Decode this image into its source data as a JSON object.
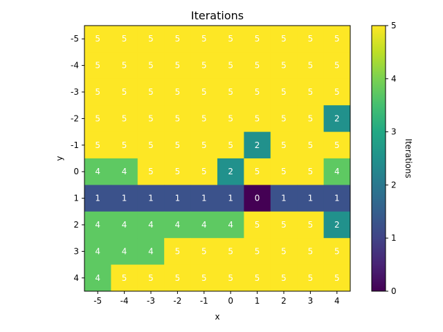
{
  "chart_data": {
    "type": "heatmap",
    "title": "Iterations",
    "xlabel": "x",
    "ylabel": "y",
    "x_categories": [
      "-5",
      "-4",
      "-3",
      "-2",
      "-1",
      "0",
      "1",
      "2",
      "3",
      "4"
    ],
    "y_categories": [
      "-5",
      "-4",
      "-3",
      "-2",
      "-1",
      "0",
      "1",
      "2",
      "3",
      "4"
    ],
    "values": [
      [
        5,
        5,
        5,
        5,
        5,
        5,
        5,
        5,
        5,
        5
      ],
      [
        5,
        5,
        5,
        5,
        5,
        5,
        5,
        5,
        5,
        5
      ],
      [
        5,
        5,
        5,
        5,
        5,
        5,
        5,
        5,
        5,
        5
      ],
      [
        5,
        5,
        5,
        5,
        5,
        5,
        5,
        5,
        5,
        2
      ],
      [
        5,
        5,
        5,
        5,
        5,
        5,
        2,
        5,
        5,
        5
      ],
      [
        4,
        4,
        5,
        5,
        5,
        2,
        5,
        5,
        5,
        4
      ],
      [
        1,
        1,
        1,
        1,
        1,
        1,
        0,
        1,
        1,
        1
      ],
      [
        4,
        4,
        4,
        4,
        4,
        4,
        5,
        5,
        5,
        2
      ],
      [
        4,
        4,
        4,
        5,
        5,
        5,
        5,
        5,
        5,
        5
      ],
      [
        4,
        5,
        5,
        5,
        5,
        5,
        5,
        5,
        5,
        5
      ]
    ],
    "colorbar": {
      "label": "Iterations",
      "range": [
        0,
        5
      ],
      "ticks": [
        "0",
        "1",
        "2",
        "3",
        "4",
        "5"
      ],
      "colormap": "viridis"
    },
    "value_colors": {
      "0": "#440154",
      "1": "#3b528b",
      "2": "#21918c",
      "3": "#21918c",
      "4": "#5ec962",
      "5": "#fde725"
    },
    "cell_text_color": "#ffffff",
    "grid": false
  }
}
